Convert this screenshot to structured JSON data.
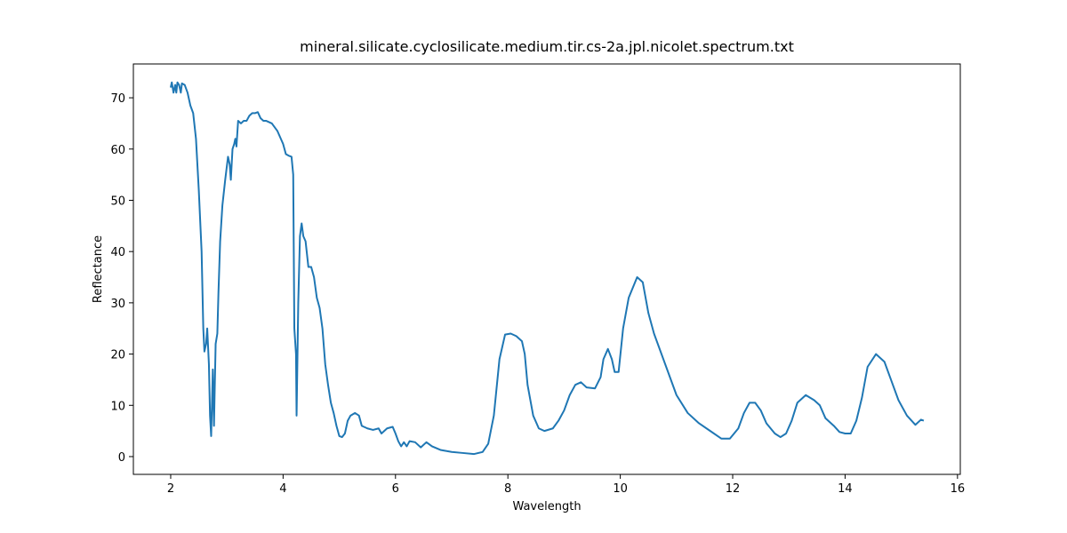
{
  "chart_data": {
    "type": "line",
    "title": "mineral.silicate.cyclosilicate.medium.tir.cs-2a.jpl.nicolet.spectrum.txt",
    "x_label": "Wavelength",
    "y_label": "Reflectance",
    "x": [
      2.0,
      2.02,
      2.05,
      2.08,
      2.1,
      2.12,
      2.15,
      2.18,
      2.2,
      2.25,
      2.3,
      2.35,
      2.4,
      2.45,
      2.5,
      2.55,
      2.58,
      2.6,
      2.63,
      2.65,
      2.68,
      2.7,
      2.72,
      2.75,
      2.77,
      2.8,
      2.83,
      2.85,
      2.88,
      2.92,
      2.97,
      3.02,
      3.05,
      3.07,
      3.1,
      3.13,
      3.15,
      3.17,
      3.2,
      3.25,
      3.3,
      3.35,
      3.4,
      3.45,
      3.5,
      3.55,
      3.6,
      3.65,
      3.7,
      3.8,
      3.9,
      4.0,
      4.05,
      4.1,
      4.15,
      4.18,
      4.2,
      4.23,
      4.24,
      4.27,
      4.3,
      4.33,
      4.36,
      4.4,
      4.45,
      4.5,
      4.55,
      4.6,
      4.65,
      4.7,
      4.75,
      4.8,
      4.85,
      4.9,
      4.95,
      5.0,
      5.05,
      5.1,
      5.15,
      5.2,
      5.28,
      5.35,
      5.4,
      5.5,
      5.6,
      5.7,
      5.75,
      5.85,
      5.95,
      6.0,
      6.05,
      6.1,
      6.15,
      6.2,
      6.25,
      6.35,
      6.45,
      6.55,
      6.65,
      6.8,
      7.0,
      7.2,
      7.4,
      7.55,
      7.65,
      7.75,
      7.85,
      7.95,
      8.05,
      8.15,
      8.25,
      8.3,
      8.35,
      8.45,
      8.55,
      8.65,
      8.8,
      8.9,
      9.0,
      9.1,
      9.2,
      9.3,
      9.4,
      9.55,
      9.65,
      9.7,
      9.78,
      9.85,
      9.9,
      9.97,
      10.05,
      10.15,
      10.3,
      10.4,
      10.5,
      10.6,
      10.8,
      11.0,
      11.2,
      11.4,
      11.6,
      11.8,
      11.95,
      12.1,
      12.2,
      12.3,
      12.4,
      12.5,
      12.6,
      12.75,
      12.85,
      12.95,
      13.05,
      13.15,
      13.3,
      13.45,
      13.55,
      13.65,
      13.8,
      13.9,
      14.0,
      14.1,
      14.2,
      14.3,
      14.4,
      14.55,
      14.7,
      14.8,
      14.95,
      15.1,
      15.25,
      15.35,
      15.4
    ],
    "series": [
      {
        "color": "#1f77b4",
        "values": [
          72,
          73,
          71,
          72.5,
          71,
          73,
          72.5,
          71,
          72.8,
          72.5,
          71,
          68.5,
          67,
          62,
          52,
          40,
          25,
          20.5,
          22,
          25,
          18,
          8,
          4,
          17,
          6,
          22,
          24,
          32,
          42,
          49,
          54,
          58.5,
          57,
          54,
          60,
          61,
          62,
          60.5,
          65.5,
          65,
          65.5,
          65.5,
          66.5,
          67,
          67,
          67.2,
          66,
          65.5,
          65.5,
          65,
          63.5,
          61,
          59,
          58.7,
          58.5,
          55,
          25,
          20,
          8,
          30,
          43,
          45.5,
          43,
          42,
          37,
          37,
          35,
          31,
          29,
          25,
          18,
          14,
          10.5,
          8.5,
          6,
          4,
          3.8,
          4.5,
          7,
          8,
          8.5,
          8,
          6,
          5.5,
          5.2,
          5.5,
          4.5,
          5.5,
          5.8,
          4.5,
          3,
          2,
          2.8,
          2,
          3,
          2.8,
          1.8,
          2.8,
          2,
          1.3,
          0.9,
          0.7,
          0.5,
          0.9,
          2.5,
          8,
          19,
          23.8,
          24,
          23.5,
          22.5,
          20,
          14,
          8,
          5.5,
          5,
          5.5,
          7,
          9,
          12,
          14,
          14.5,
          13.5,
          13.3,
          15.5,
          19,
          21,
          19,
          16.5,
          16.5,
          25,
          31,
          35,
          34,
          28,
          24,
          18,
          12,
          8.5,
          6.5,
          5,
          3.5,
          3.5,
          5.5,
          8.5,
          10.5,
          10.5,
          9,
          6.5,
          4.5,
          3.8,
          4.5,
          7,
          10.5,
          12,
          11,
          10,
          7.5,
          6,
          4.8,
          4.5,
          4.5,
          7,
          11.5,
          17.5,
          20,
          18.5,
          15.5,
          11,
          8,
          6.2,
          7.2,
          7
        ]
      }
    ],
    "xlim": [
      1.336,
      16.05
    ],
    "ylim": [
      -3.47,
      76.6
    ],
    "xticks": [
      2,
      4,
      6,
      8,
      10,
      12,
      14,
      16
    ],
    "yticks": [
      0,
      10,
      20,
      30,
      40,
      50,
      60,
      70
    ],
    "grid": false
  }
}
